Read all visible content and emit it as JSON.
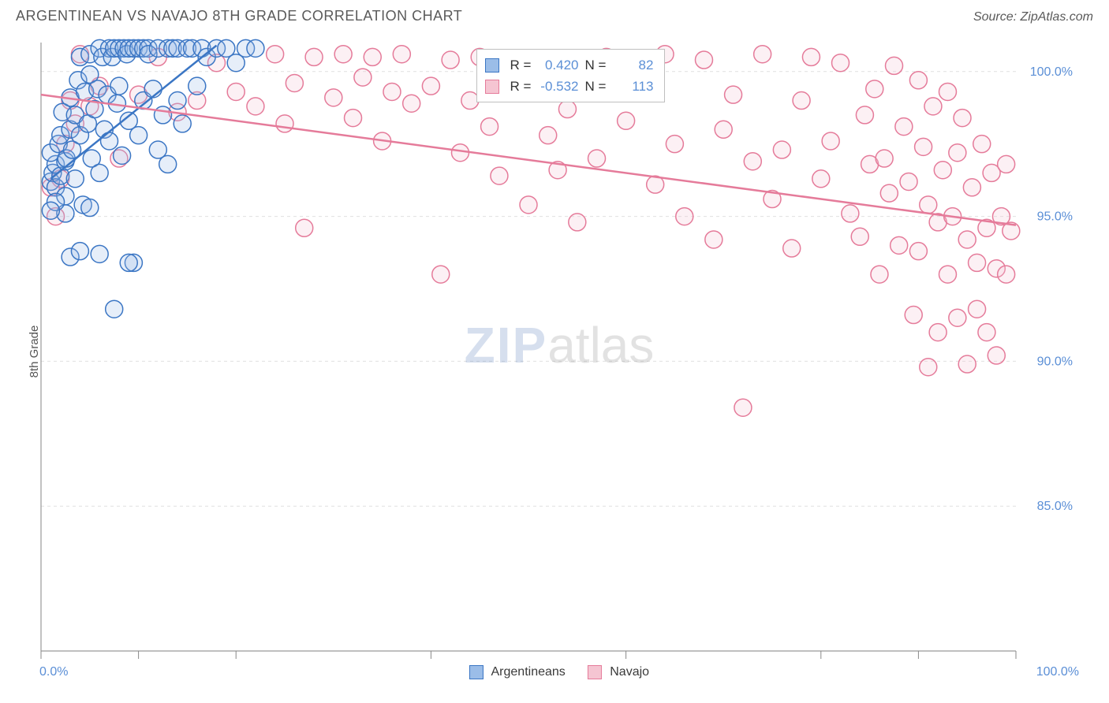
{
  "title": "ARGENTINEAN VS NAVAJO 8TH GRADE CORRELATION CHART",
  "source": "Source: ZipAtlas.com",
  "ylabel": "8th Grade",
  "watermark_part1": "ZIP",
  "watermark_part2": "atlas",
  "chart": {
    "type": "scatter",
    "xlim": [
      0,
      100
    ],
    "ylim": [
      80,
      101
    ],
    "ytick_values": [
      85.0,
      90.0,
      95.0,
      100.0
    ],
    "ytick_labels": [
      "85.0%",
      "90.0%",
      "95.0%",
      "100.0%"
    ],
    "xtick_values": [
      0,
      10,
      20,
      40,
      60,
      80,
      90,
      100
    ],
    "xaxis_label_left": "0.0%",
    "xaxis_label_right": "100.0%",
    "grid_color": "#e0e0e0",
    "axis_color": "#999999",
    "tick_color": "#888888",
    "ytick_label_color": "#5b8fd6",
    "xaxis_label_color": "#5b8fd6",
    "marker_radius": 11,
    "marker_stroke_width": 1.5,
    "marker_fill_opacity": 0.25,
    "series": {
      "argentineans": {
        "label": "Argentineans",
        "stroke": "#3b76c4",
        "fill": "#9bbde8",
        "regression": {
          "x1": 1,
          "y1": 96.3,
          "x2": 18,
          "y2": 100.9
        },
        "points": [
          {
            "x": 1.0,
            "y": 96.2
          },
          {
            "x": 1.2,
            "y": 96.5
          },
          {
            "x": 1.5,
            "y": 96.0
          },
          {
            "x": 1.5,
            "y": 96.8
          },
          {
            "x": 1.0,
            "y": 97.2
          },
          {
            "x": 1.8,
            "y": 97.5
          },
          {
            "x": 2.0,
            "y": 96.4
          },
          {
            "x": 2.0,
            "y": 97.8
          },
          {
            "x": 2.2,
            "y": 98.6
          },
          {
            "x": 2.5,
            "y": 96.9
          },
          {
            "x": 2.5,
            "y": 95.7
          },
          {
            "x": 2.6,
            "y": 97.0
          },
          {
            "x": 3.0,
            "y": 98.0
          },
          {
            "x": 3.0,
            "y": 99.1
          },
          {
            "x": 3.2,
            "y": 97.3
          },
          {
            "x": 3.5,
            "y": 96.3
          },
          {
            "x": 3.5,
            "y": 98.5
          },
          {
            "x": 3.8,
            "y": 99.7
          },
          {
            "x": 4.0,
            "y": 100.5
          },
          {
            "x": 4.0,
            "y": 97.8
          },
          {
            "x": 4.3,
            "y": 95.4
          },
          {
            "x": 4.5,
            "y": 99.3
          },
          {
            "x": 4.8,
            "y": 98.2
          },
          {
            "x": 5.0,
            "y": 99.9
          },
          {
            "x": 5.0,
            "y": 100.6
          },
          {
            "x": 5.2,
            "y": 97.0
          },
          {
            "x": 5.5,
            "y": 98.7
          },
          {
            "x": 5.8,
            "y": 99.4
          },
          {
            "x": 6.0,
            "y": 100.8
          },
          {
            "x": 6.0,
            "y": 96.5
          },
          {
            "x": 6.3,
            "y": 100.5
          },
          {
            "x": 6.5,
            "y": 98.0
          },
          {
            "x": 6.8,
            "y": 99.2
          },
          {
            "x": 7.0,
            "y": 100.8
          },
          {
            "x": 7.0,
            "y": 97.6
          },
          {
            "x": 7.3,
            "y": 100.5
          },
          {
            "x": 7.5,
            "y": 100.8
          },
          {
            "x": 7.8,
            "y": 98.9
          },
          {
            "x": 8.0,
            "y": 100.8
          },
          {
            "x": 8.0,
            "y": 99.5
          },
          {
            "x": 8.3,
            "y": 97.1
          },
          {
            "x": 8.5,
            "y": 100.8
          },
          {
            "x": 8.8,
            "y": 100.6
          },
          {
            "x": 9.0,
            "y": 100.8
          },
          {
            "x": 9.0,
            "y": 98.3
          },
          {
            "x": 9.5,
            "y": 100.8
          },
          {
            "x": 9.5,
            "y": 93.4
          },
          {
            "x": 10.0,
            "y": 100.8
          },
          {
            "x": 10.0,
            "y": 97.8
          },
          {
            "x": 10.5,
            "y": 100.8
          },
          {
            "x": 10.5,
            "y": 99.0
          },
          {
            "x": 11.0,
            "y": 100.8
          },
          {
            "x": 11.0,
            "y": 100.6
          },
          {
            "x": 11.5,
            "y": 99.4
          },
          {
            "x": 12.0,
            "y": 100.8
          },
          {
            "x": 12.0,
            "y": 97.3
          },
          {
            "x": 12.5,
            "y": 98.5
          },
          {
            "x": 13.0,
            "y": 100.8
          },
          {
            "x": 13.0,
            "y": 96.8
          },
          {
            "x": 13.5,
            "y": 100.8
          },
          {
            "x": 14.0,
            "y": 100.8
          },
          {
            "x": 14.0,
            "y": 99.0
          },
          {
            "x": 14.5,
            "y": 98.2
          },
          {
            "x": 15.0,
            "y": 100.8
          },
          {
            "x": 15.5,
            "y": 100.8
          },
          {
            "x": 16.0,
            "y": 99.5
          },
          {
            "x": 16.5,
            "y": 100.8
          },
          {
            "x": 17.0,
            "y": 100.5
          },
          {
            "x": 18.0,
            "y": 100.8
          },
          {
            "x": 19.0,
            "y": 100.8
          },
          {
            "x": 20.0,
            "y": 100.3
          },
          {
            "x": 21.0,
            "y": 100.8
          },
          {
            "x": 22.0,
            "y": 100.8
          },
          {
            "x": 3.0,
            "y": 93.6
          },
          {
            "x": 4.0,
            "y": 93.8
          },
          {
            "x": 2.5,
            "y": 95.1
          },
          {
            "x": 1.5,
            "y": 95.5
          },
          {
            "x": 1.0,
            "y": 95.2
          },
          {
            "x": 7.5,
            "y": 91.8
          },
          {
            "x": 6.0,
            "y": 93.7
          },
          {
            "x": 5.0,
            "y": 95.3
          },
          {
            "x": 9.0,
            "y": 93.4
          }
        ]
      },
      "navajo": {
        "label": "Navajo",
        "stroke": "#e57b9a",
        "fill": "#f5c5d2",
        "regression": {
          "x1": 0,
          "y1": 99.2,
          "x2": 100,
          "y2": 94.7
        },
        "points": [
          {
            "x": 1.0,
            "y": 96.0
          },
          {
            "x": 1.5,
            "y": 95.0
          },
          {
            "x": 2.0,
            "y": 96.3
          },
          {
            "x": 2.5,
            "y": 97.5
          },
          {
            "x": 3.0,
            "y": 99.0
          },
          {
            "x": 3.5,
            "y": 98.2
          },
          {
            "x": 4.0,
            "y": 100.6
          },
          {
            "x": 5.0,
            "y": 98.8
          },
          {
            "x": 6.0,
            "y": 99.5
          },
          {
            "x": 8.0,
            "y": 97.0
          },
          {
            "x": 10.0,
            "y": 99.2
          },
          {
            "x": 12.0,
            "y": 100.5
          },
          {
            "x": 14.0,
            "y": 98.6
          },
          {
            "x": 16.0,
            "y": 99.0
          },
          {
            "x": 18.0,
            "y": 100.3
          },
          {
            "x": 20.0,
            "y": 99.3
          },
          {
            "x": 22.0,
            "y": 98.8
          },
          {
            "x": 24.0,
            "y": 100.6
          },
          {
            "x": 25.0,
            "y": 98.2
          },
          {
            "x": 26.0,
            "y": 99.6
          },
          {
            "x": 27.0,
            "y": 94.6
          },
          {
            "x": 28.0,
            "y": 100.5
          },
          {
            "x": 30.0,
            "y": 99.1
          },
          {
            "x": 31.0,
            "y": 100.6
          },
          {
            "x": 32.0,
            "y": 98.4
          },
          {
            "x": 33.0,
            "y": 99.8
          },
          {
            "x": 34.0,
            "y": 100.5
          },
          {
            "x": 35.0,
            "y": 97.6
          },
          {
            "x": 36.0,
            "y": 99.3
          },
          {
            "x": 37.0,
            "y": 100.6
          },
          {
            "x": 38.0,
            "y": 98.9
          },
          {
            "x": 40.0,
            "y": 99.5
          },
          {
            "x": 41.0,
            "y": 93.0
          },
          {
            "x": 42.0,
            "y": 100.4
          },
          {
            "x": 43.0,
            "y": 97.2
          },
          {
            "x": 44.0,
            "y": 99.0
          },
          {
            "x": 45.0,
            "y": 100.5
          },
          {
            "x": 46.0,
            "y": 98.1
          },
          {
            "x": 47.0,
            "y": 96.4
          },
          {
            "x": 48.0,
            "y": 99.6
          },
          {
            "x": 50.0,
            "y": 95.4
          },
          {
            "x": 51.0,
            "y": 100.3
          },
          {
            "x": 52.0,
            "y": 97.8
          },
          {
            "x": 53.0,
            "y": 96.6
          },
          {
            "x": 54.0,
            "y": 98.7
          },
          {
            "x": 55.0,
            "y": 94.8
          },
          {
            "x": 56.0,
            "y": 99.9
          },
          {
            "x": 57.0,
            "y": 97.0
          },
          {
            "x": 58.0,
            "y": 100.5
          },
          {
            "x": 60.0,
            "y": 98.3
          },
          {
            "x": 62.0,
            "y": 99.4
          },
          {
            "x": 63.0,
            "y": 96.1
          },
          {
            "x": 64.0,
            "y": 100.6
          },
          {
            "x": 65.0,
            "y": 97.5
          },
          {
            "x": 66.0,
            "y": 95.0
          },
          {
            "x": 68.0,
            "y": 100.4
          },
          {
            "x": 69.0,
            "y": 94.2
          },
          {
            "x": 70.0,
            "y": 98.0
          },
          {
            "x": 71.0,
            "y": 99.2
          },
          {
            "x": 72.0,
            "y": 88.4
          },
          {
            "x": 73.0,
            "y": 96.9
          },
          {
            "x": 74.0,
            "y": 100.6
          },
          {
            "x": 75.0,
            "y": 95.6
          },
          {
            "x": 76.0,
            "y": 97.3
          },
          {
            "x": 77.0,
            "y": 93.9
          },
          {
            "x": 78.0,
            "y": 99.0
          },
          {
            "x": 79.0,
            "y": 100.5
          },
          {
            "x": 80.0,
            "y": 96.3
          },
          {
            "x": 81.0,
            "y": 97.6
          },
          {
            "x": 82.0,
            "y": 100.3
          },
          {
            "x": 83.0,
            "y": 95.1
          },
          {
            "x": 84.0,
            "y": 94.3
          },
          {
            "x": 84.5,
            "y": 98.5
          },
          {
            "x": 85.0,
            "y": 96.8
          },
          {
            "x": 85.5,
            "y": 99.4
          },
          {
            "x": 86.0,
            "y": 93.0
          },
          {
            "x": 86.5,
            "y": 97.0
          },
          {
            "x": 87.0,
            "y": 95.8
          },
          {
            "x": 87.5,
            "y": 100.2
          },
          {
            "x": 88.0,
            "y": 94.0
          },
          {
            "x": 88.5,
            "y": 98.1
          },
          {
            "x": 89.0,
            "y": 96.2
          },
          {
            "x": 89.5,
            "y": 91.6
          },
          {
            "x": 90.0,
            "y": 99.7
          },
          {
            "x": 90.0,
            "y": 93.8
          },
          {
            "x": 90.5,
            "y": 97.4
          },
          {
            "x": 91.0,
            "y": 95.4
          },
          {
            "x": 91.0,
            "y": 89.8
          },
          {
            "x": 91.5,
            "y": 98.8
          },
          {
            "x": 92.0,
            "y": 94.8
          },
          {
            "x": 92.0,
            "y": 91.0
          },
          {
            "x": 92.5,
            "y": 96.6
          },
          {
            "x": 93.0,
            "y": 99.3
          },
          {
            "x": 93.0,
            "y": 93.0
          },
          {
            "x": 93.5,
            "y": 95.0
          },
          {
            "x": 94.0,
            "y": 97.2
          },
          {
            "x": 94.0,
            "y": 91.5
          },
          {
            "x": 94.5,
            "y": 98.4
          },
          {
            "x": 95.0,
            "y": 94.2
          },
          {
            "x": 95.0,
            "y": 89.9
          },
          {
            "x": 95.5,
            "y": 96.0
          },
          {
            "x": 96.0,
            "y": 93.4
          },
          {
            "x": 96.0,
            "y": 91.8
          },
          {
            "x": 96.5,
            "y": 97.5
          },
          {
            "x": 97.0,
            "y": 94.6
          },
          {
            "x": 97.0,
            "y": 91.0
          },
          {
            "x": 97.5,
            "y": 96.5
          },
          {
            "x": 98.0,
            "y": 93.2
          },
          {
            "x": 98.0,
            "y": 90.2
          },
          {
            "x": 98.5,
            "y": 95.0
          },
          {
            "x": 99.0,
            "y": 96.8
          },
          {
            "x": 99.0,
            "y": 93.0
          },
          {
            "x": 99.5,
            "y": 94.5
          }
        ]
      }
    }
  },
  "legend_top": {
    "rows": [
      {
        "swatch_stroke": "#3b76c4",
        "swatch_fill": "#9bbde8",
        "r_label": "R =",
        "r_value": "0.420",
        "n_label": "N =",
        "n_value": "82"
      },
      {
        "swatch_stroke": "#e57b9a",
        "swatch_fill": "#f5c5d2",
        "r_label": "R =",
        "r_value": "-0.532",
        "n_label": "N =",
        "n_value": "113"
      }
    ]
  }
}
